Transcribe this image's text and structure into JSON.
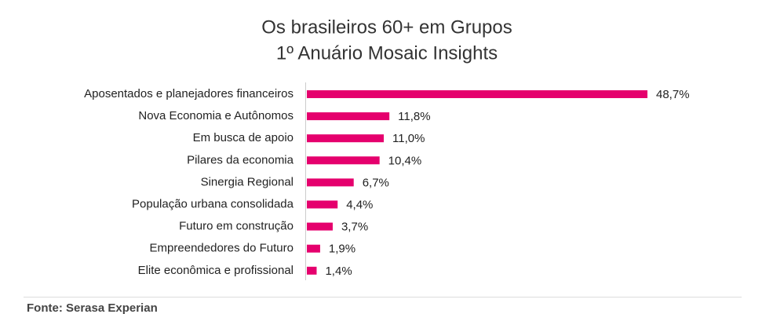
{
  "chart_data": {
    "type": "hbar",
    "title": "Os brasileiros 60+ em Grupos",
    "subtitle": "1º Anuário Mosaic Insights",
    "categories": [
      "Aposentados e planejadores financeiros",
      "Nova Economia e Autônomos",
      "Em busca de apoio",
      "Pilares da economia",
      "Sinergia Regional",
      "População urbana consolidada",
      "Futuro em construção",
      "Empreendedores do Futuro",
      "Elite econômica e profissional"
    ],
    "values": [
      48.7,
      11.8,
      11.0,
      10.4,
      6.7,
      4.4,
      3.7,
      1.9,
      1.4
    ],
    "value_labels": [
      "48,7%",
      "11,8%",
      "11,0%",
      "10,4%",
      "6,7%",
      "4,4%",
      "3,7%",
      "1,9%",
      "1,4%"
    ],
    "color": "#e5006d",
    "source": "Fonte: Serasa Experian"
  }
}
